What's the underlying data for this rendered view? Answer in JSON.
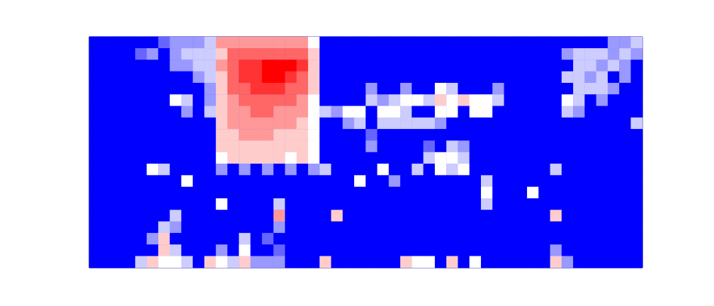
{
  "chart_data": {
    "type": "heatmap",
    "tick_labels": false,
    "color_range": [
      0,
      10
    ],
    "cells": [
      [
        0,
        0,
        0,
        0,
        0,
        0,
        2,
        3,
        3,
        3,
        4,
        7,
        7,
        7,
        7,
        7,
        7,
        7,
        7,
        5,
        0,
        0,
        0,
        0,
        0,
        0,
        0,
        0,
        0,
        0,
        0,
        0,
        0,
        0,
        0,
        0,
        0,
        0,
        0,
        0,
        0,
        0,
        0,
        0,
        0,
        3,
        3,
        4
      ],
      [
        0,
        0,
        0,
        0,
        2,
        3,
        0,
        3,
        4,
        4,
        4,
        6,
        8,
        8,
        8,
        8,
        8,
        8,
        8,
        6,
        0,
        0,
        0,
        0,
        0,
        0,
        0,
        0,
        0,
        0,
        0,
        0,
        0,
        0,
        0,
        0,
        0,
        0,
        0,
        0,
        0,
        3,
        4,
        4,
        4,
        3,
        4,
        3
      ],
      [
        0,
        0,
        0,
        0,
        0,
        0,
        0,
        3,
        3,
        4,
        4,
        7,
        8,
        9,
        9,
        10,
        10,
        10,
        9,
        6,
        0,
        0,
        0,
        0,
        0,
        0,
        0,
        0,
        0,
        0,
        0,
        0,
        0,
        0,
        0,
        0,
        0,
        0,
        0,
        0,
        0,
        0,
        4,
        4,
        3,
        4,
        3,
        0
      ],
      [
        0,
        0,
        0,
        0,
        0,
        0,
        0,
        0,
        0,
        3,
        4,
        6,
        8,
        9,
        9,
        10,
        10,
        9,
        8,
        6,
        0,
        0,
        0,
        0,
        0,
        0,
        0,
        0,
        0,
        0,
        0,
        0,
        0,
        0,
        0,
        0,
        0,
        0,
        0,
        0,
        0,
        4,
        4,
        3,
        4,
        0,
        3,
        0
      ],
      [
        0,
        0,
        0,
        0,
        0,
        0,
        0,
        0,
        0,
        0,
        3,
        6,
        8,
        8,
        9,
        9,
        9,
        8,
        8,
        6,
        0,
        0,
        0,
        0,
        3,
        0,
        0,
        3,
        0,
        0,
        5,
        4,
        0,
        0,
        0,
        3,
        0,
        0,
        0,
        0,
        0,
        0,
        4,
        4,
        4,
        3,
        0,
        0
      ],
      [
        0,
        0,
        0,
        0,
        0,
        0,
        0,
        5,
        4,
        0,
        3,
        6,
        7,
        8,
        8,
        8,
        8,
        8,
        7,
        5,
        0,
        0,
        0,
        0,
        4,
        3,
        4,
        5,
        5,
        4,
        6,
        5,
        6,
        5,
        5,
        4,
        0,
        0,
        0,
        0,
        0,
        5,
        4,
        0,
        3,
        0,
        0,
        0
      ],
      [
        0,
        0,
        0,
        0,
        0,
        0,
        0,
        0,
        3,
        0,
        4,
        6,
        7,
        7,
        8,
        8,
        7,
        7,
        7,
        5,
        4,
        3,
        5,
        5,
        0,
        5,
        5,
        4,
        0,
        0,
        5,
        5,
        0,
        5,
        5,
        0,
        0,
        0,
        0,
        0,
        0,
        4,
        3,
        0,
        0,
        0,
        0,
        0
      ],
      [
        0,
        0,
        0,
        0,
        0,
        0,
        0,
        0,
        0,
        0,
        0,
        6,
        7,
        7,
        7,
        7,
        7,
        7,
        6,
        5,
        0,
        0,
        3,
        4,
        0,
        4,
        4,
        4,
        4,
        4,
        3,
        0,
        0,
        0,
        0,
        0,
        0,
        0,
        0,
        0,
        0,
        0,
        0,
        0,
        0,
        0,
        0,
        4
      ],
      [
        0,
        0,
        0,
        0,
        0,
        0,
        0,
        0,
        0,
        0,
        0,
        6,
        6,
        7,
        7,
        7,
        6,
        6,
        6,
        5,
        0,
        0,
        0,
        0,
        2,
        0,
        0,
        0,
        0,
        0,
        0,
        0,
        0,
        0,
        0,
        0,
        0,
        0,
        0,
        0,
        0,
        0,
        0,
        0,
        0,
        0,
        0,
        0
      ],
      [
        0,
        0,
        0,
        0,
        0,
        0,
        0,
        0,
        0,
        0,
        0,
        6,
        6,
        6,
        6,
        6,
        6,
        6,
        6,
        5,
        0,
        0,
        0,
        0,
        3,
        0,
        0,
        0,
        0,
        2,
        0,
        4,
        3,
        0,
        0,
        0,
        0,
        0,
        0,
        0,
        0,
        0,
        0,
        0,
        0,
        0,
        0,
        0
      ],
      [
        0,
        0,
        0,
        0,
        0,
        0,
        0,
        0,
        0,
        0,
        0,
        5,
        6,
        6,
        6,
        6,
        6,
        5,
        6,
        5,
        0,
        0,
        0,
        0,
        0,
        0,
        0,
        0,
        0,
        4,
        5,
        5,
        4,
        0,
        0,
        0,
        0,
        0,
        0,
        0,
        0,
        0,
        0,
        0,
        0,
        0,
        0,
        0
      ],
      [
        0,
        0,
        0,
        0,
        0,
        5,
        4,
        0,
        0,
        0,
        0,
        3,
        0,
        3,
        0,
        3,
        0,
        3,
        0,
        3,
        4,
        0,
        0,
        0,
        0,
        5,
        0,
        0,
        4,
        0,
        5,
        4,
        5,
        0,
        0,
        0,
        0,
        0,
        0,
        0,
        4,
        0,
        0,
        0,
        0,
        0,
        0,
        0
      ],
      [
        0,
        0,
        0,
        0,
        0,
        0,
        0,
        0,
        5,
        0,
        0,
        0,
        0,
        0,
        0,
        0,
        0,
        0,
        0,
        0,
        0,
        0,
        0,
        5,
        0,
        0,
        3,
        0,
        0,
        0,
        0,
        0,
        0,
        0,
        4,
        0,
        0,
        0,
        0,
        0,
        0,
        0,
        0,
        0,
        0,
        0,
        0,
        0
      ],
      [
        0,
        0,
        0,
        0,
        0,
        0,
        0,
        0,
        0,
        0,
        0,
        0,
        0,
        0,
        0,
        0,
        0,
        0,
        0,
        0,
        0,
        0,
        0,
        0,
        0,
        0,
        0,
        0,
        0,
        0,
        0,
        0,
        0,
        0,
        5,
        0,
        0,
        0,
        5,
        0,
        0,
        0,
        0,
        0,
        0,
        0,
        0,
        0
      ],
      [
        0,
        0,
        0,
        0,
        0,
        0,
        0,
        0,
        0,
        0,
        0,
        5,
        0,
        0,
        0,
        0,
        4,
        0,
        0,
        0,
        0,
        0,
        0,
        0,
        0,
        0,
        0,
        0,
        0,
        0,
        0,
        0,
        0,
        0,
        4,
        0,
        0,
        0,
        0,
        0,
        0,
        0,
        0,
        0,
        0,
        0,
        0,
        0
      ],
      [
        0,
        0,
        0,
        0,
        0,
        0,
        0,
        4,
        0,
        0,
        0,
        0,
        0,
        0,
        0,
        0,
        7,
        0,
        0,
        0,
        0,
        6,
        0,
        0,
        0,
        0,
        0,
        0,
        0,
        0,
        0,
        0,
        0,
        0,
        0,
        0,
        0,
        0,
        0,
        0,
        6,
        0,
        0,
        0,
        0,
        0,
        0,
        0
      ],
      [
        0,
        0,
        0,
        0,
        0,
        0,
        4,
        3,
        0,
        0,
        0,
        0,
        0,
        0,
        0,
        0,
        3,
        0,
        0,
        0,
        0,
        0,
        0,
        0,
        0,
        0,
        0,
        0,
        0,
        0,
        0,
        0,
        0,
        0,
        0,
        0,
        0,
        0,
        0,
        0,
        0,
        0,
        0,
        0,
        0,
        0,
        0,
        0
      ],
      [
        0,
        0,
        0,
        0,
        0,
        3,
        6,
        0,
        0,
        0,
        0,
        0,
        0,
        4,
        0,
        2,
        0,
        0,
        0,
        0,
        0,
        0,
        0,
        0,
        0,
        0,
        0,
        0,
        0,
        0,
        0,
        0,
        0,
        0,
        0,
        0,
        0,
        0,
        0,
        0,
        0,
        0,
        0,
        0,
        0,
        0,
        0,
        0
      ],
      [
        0,
        0,
        0,
        0,
        0,
        0,
        6,
        4,
        0,
        0,
        0,
        3,
        0,
        5,
        0,
        0,
        2,
        0,
        0,
        0,
        0,
        0,
        0,
        0,
        0,
        0,
        0,
        0,
        0,
        0,
        0,
        0,
        0,
        0,
        0,
        0,
        0,
        0,
        0,
        0,
        3,
        0,
        0,
        0,
        0,
        0,
        0,
        0
      ],
      [
        0,
        0,
        0,
        0,
        4,
        6,
        5,
        5,
        4,
        0,
        6,
        5,
        4,
        6,
        3,
        3,
        3,
        0,
        0,
        0,
        6,
        0,
        0,
        0,
        0,
        0,
        0,
        6,
        5,
        5,
        0,
        6,
        0,
        5,
        0,
        0,
        0,
        0,
        0,
        0,
        6,
        3,
        0,
        0,
        0,
        0,
        0,
        0
      ]
    ]
  }
}
